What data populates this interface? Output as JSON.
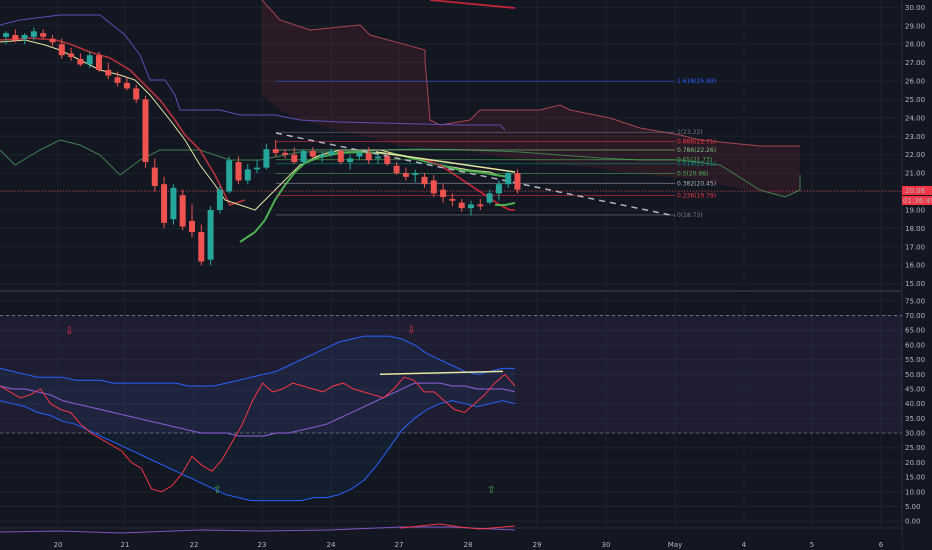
{
  "chart_data": {
    "type": "candlestick",
    "x_ticks": [
      "20",
      "21",
      "22",
      "23",
      "24",
      "27",
      "28",
      "29",
      "30",
      "May",
      "4",
      "5",
      "6"
    ],
    "price_ticks": [
      "15.00",
      "16.00",
      "17.00",
      "18.00",
      "19.00",
      "20.00",
      "21.00",
      "22.00",
      "23.00",
      "24.00",
      "25.00",
      "26.00",
      "27.00",
      "28.00",
      "29.00",
      "30.00"
    ],
    "price_range": [
      14.6,
      30.4
    ],
    "current_price_badge": "20.08",
    "countdown_badge": "01:36:49",
    "candles": [
      {
        "t": 0,
        "o": 28.4,
        "h": 28.7,
        "l": 28.0,
        "c": 28.6
      },
      {
        "t": 1,
        "o": 28.5,
        "h": 28.8,
        "l": 28.1,
        "c": 28.2
      },
      {
        "t": 2,
        "o": 28.3,
        "h": 28.6,
        "l": 28.0,
        "c": 28.5
      },
      {
        "t": 3,
        "o": 28.4,
        "h": 28.9,
        "l": 28.2,
        "c": 28.7
      },
      {
        "t": 4,
        "o": 28.6,
        "h": 28.8,
        "l": 28.3,
        "c": 28.4
      },
      {
        "t": 5,
        "o": 28.3,
        "h": 28.5,
        "l": 27.9,
        "c": 28.1
      },
      {
        "t": 6,
        "o": 28.0,
        "h": 28.3,
        "l": 27.2,
        "c": 27.4
      },
      {
        "t": 7,
        "o": 27.5,
        "h": 27.8,
        "l": 27.1,
        "c": 27.3
      },
      {
        "t": 8,
        "o": 27.2,
        "h": 27.5,
        "l": 26.8,
        "c": 26.9
      },
      {
        "t": 9,
        "o": 26.9,
        "h": 27.6,
        "l": 26.7,
        "c": 27.4
      },
      {
        "t": 10,
        "o": 27.4,
        "h": 27.6,
        "l": 26.5,
        "c": 26.6
      },
      {
        "t": 11,
        "o": 26.6,
        "h": 27.0,
        "l": 26.1,
        "c": 26.3
      },
      {
        "t": 12,
        "o": 26.2,
        "h": 26.5,
        "l": 25.7,
        "c": 25.9
      },
      {
        "t": 13,
        "o": 25.9,
        "h": 26.2,
        "l": 25.5,
        "c": 25.6
      },
      {
        "t": 14,
        "o": 25.6,
        "h": 25.8,
        "l": 24.8,
        "c": 25.0
      },
      {
        "t": 15,
        "o": 25.0,
        "h": 25.2,
        "l": 21.3,
        "c": 21.6
      },
      {
        "t": 16,
        "o": 21.3,
        "h": 21.8,
        "l": 20.0,
        "c": 20.3
      },
      {
        "t": 17,
        "o": 20.4,
        "h": 20.8,
        "l": 18.0,
        "c": 18.3
      },
      {
        "t": 18,
        "o": 18.5,
        "h": 20.4,
        "l": 18.2,
        "c": 20.2
      },
      {
        "t": 19,
        "o": 19.8,
        "h": 20.1,
        "l": 17.9,
        "c": 18.1
      },
      {
        "t": 20,
        "o": 18.4,
        "h": 19.3,
        "l": 17.5,
        "c": 17.8
      },
      {
        "t": 21,
        "o": 17.8,
        "h": 18.2,
        "l": 16.0,
        "c": 16.2
      },
      {
        "t": 22,
        "o": 16.3,
        "h": 19.2,
        "l": 16.0,
        "c": 19.0
      },
      {
        "t": 23,
        "o": 19.0,
        "h": 20.3,
        "l": 18.8,
        "c": 20.1
      },
      {
        "t": 24,
        "o": 20.0,
        "h": 21.9,
        "l": 19.9,
        "c": 21.7
      },
      {
        "t": 25,
        "o": 21.6,
        "h": 21.9,
        "l": 20.4,
        "c": 20.6
      },
      {
        "t": 26,
        "o": 20.6,
        "h": 21.5,
        "l": 20.4,
        "c": 21.2
      },
      {
        "t": 27,
        "o": 21.2,
        "h": 21.7,
        "l": 21.0,
        "c": 21.3
      },
      {
        "t": 28,
        "o": 21.3,
        "h": 22.6,
        "l": 21.2,
        "c": 22.3
      },
      {
        "t": 29,
        "o": 22.3,
        "h": 22.8,
        "l": 21.9,
        "c": 22.1
      },
      {
        "t": 30,
        "o": 22.1,
        "h": 22.3,
        "l": 21.8,
        "c": 22.0
      },
      {
        "t": 31,
        "o": 22.0,
        "h": 22.4,
        "l": 21.5,
        "c": 21.6
      },
      {
        "t": 32,
        "o": 21.6,
        "h": 22.3,
        "l": 21.5,
        "c": 22.2
      },
      {
        "t": 33,
        "o": 22.2,
        "h": 22.4,
        "l": 21.8,
        "c": 21.9
      },
      {
        "t": 34,
        "o": 21.9,
        "h": 22.2,
        "l": 21.6,
        "c": 22.0
      },
      {
        "t": 35,
        "o": 22.0,
        "h": 22.3,
        "l": 21.9,
        "c": 22.2
      },
      {
        "t": 36,
        "o": 22.2,
        "h": 22.3,
        "l": 21.5,
        "c": 21.6
      },
      {
        "t": 37,
        "o": 21.6,
        "h": 22.0,
        "l": 21.2,
        "c": 21.8
      },
      {
        "t": 38,
        "o": 21.9,
        "h": 22.2,
        "l": 21.7,
        "c": 22.1
      },
      {
        "t": 39,
        "o": 22.1,
        "h": 22.4,
        "l": 21.5,
        "c": 21.7
      },
      {
        "t": 40,
        "o": 21.8,
        "h": 22.0,
        "l": 21.5,
        "c": 21.9
      },
      {
        "t": 41,
        "o": 21.9,
        "h": 22.1,
        "l": 21.4,
        "c": 21.5
      },
      {
        "t": 42,
        "o": 21.4,
        "h": 21.6,
        "l": 20.9,
        "c": 21.0
      },
      {
        "t": 43,
        "o": 21.0,
        "h": 21.3,
        "l": 20.6,
        "c": 20.8
      },
      {
        "t": 44,
        "o": 20.9,
        "h": 21.2,
        "l": 20.5,
        "c": 21.0
      },
      {
        "t": 45,
        "o": 20.8,
        "h": 21.0,
        "l": 20.2,
        "c": 20.4
      },
      {
        "t": 46,
        "o": 20.6,
        "h": 20.9,
        "l": 19.7,
        "c": 19.9
      },
      {
        "t": 47,
        "o": 20.1,
        "h": 20.4,
        "l": 19.4,
        "c": 19.7
      },
      {
        "t": 48,
        "o": 19.6,
        "h": 19.9,
        "l": 19.2,
        "c": 19.5
      },
      {
        "t": 49,
        "o": 19.4,
        "h": 19.6,
        "l": 18.9,
        "c": 19.1
      },
      {
        "t": 50,
        "o": 19.1,
        "h": 19.5,
        "l": 18.7,
        "c": 19.3
      },
      {
        "t": 51,
        "o": 19.3,
        "h": 19.6,
        "l": 19.0,
        "c": 19.2
      },
      {
        "t": 52,
        "o": 19.4,
        "h": 20.1,
        "l": 19.3,
        "c": 19.9
      },
      {
        "t": 53,
        "o": 19.9,
        "h": 20.6,
        "l": 19.5,
        "c": 20.4
      },
      {
        "t": 54,
        "o": 20.4,
        "h": 21.1,
        "l": 20.2,
        "c": 21.0
      },
      {
        "t": 55,
        "o": 21.0,
        "h": 21.2,
        "l": 19.9,
        "c": 20.1
      }
    ],
    "fib_levels": [
      {
        "label": "1(23.22)",
        "value": 23.22,
        "color": "#787b86"
      },
      {
        "label": "0.886(22.71)",
        "value": 22.71,
        "color": "#f23645"
      },
      {
        "label": "0.786(22.26)",
        "value": 22.26,
        "color": "#81c784"
      },
      {
        "label": "0.65(21.73)",
        "value": 21.73,
        "color": "#4caf50"
      },
      {
        "label": "0.618(21.51)",
        "value": 21.51,
        "color": "#089981"
      },
      {
        "label": "0.5(20.98)",
        "value": 20.98,
        "color": "#4caf50"
      },
      {
        "label": "0.382(20.45)",
        "value": 20.45,
        "color": "#b2b5be"
      },
      {
        "label": "0.236(19.79)",
        "value": 19.79,
        "color": "#f23645"
      },
      {
        "label": "0(18.73)",
        "value": 18.73,
        "color": "#787b86"
      },
      {
        "label": "1.618(25.99)",
        "value": 25.99,
        "color": "#2962ff"
      }
    ],
    "osc_ticks": [
      "0.00",
      "5.00",
      "10.00",
      "15.00",
      "20.00",
      "25.00",
      "30.00",
      "35.00",
      "40.00",
      "45.00",
      "50.00",
      "55.00",
      "60.00",
      "65.00",
      "70.00",
      "75.00"
    ],
    "osc_range": [
      -2,
      77
    ],
    "osc_upper_band": 70,
    "osc_lower_band": 30,
    "rsi": [
      46,
      44,
      42,
      43,
      45,
      40,
      38,
      37,
      33,
      30,
      28,
      26,
      24,
      20,
      18,
      11,
      10,
      12,
      16,
      22,
      19,
      17,
      21,
      27,
      33,
      41,
      47,
      44,
      45,
      47,
      46,
      45,
      44,
      46,
      47,
      45,
      44,
      43,
      42,
      45,
      49,
      48,
      44,
      44,
      41,
      38,
      37,
      40,
      43,
      47,
      50,
      46
    ],
    "bb_upper": [
      52,
      51,
      50,
      49,
      49,
      49,
      48,
      48,
      48,
      47,
      47,
      47,
      47,
      47,
      47,
      46,
      46,
      46,
      47,
      48,
      49,
      50,
      51,
      53,
      55,
      57,
      59,
      61,
      62,
      63,
      63,
      63,
      62,
      60,
      57,
      55,
      53,
      51,
      50,
      51,
      52,
      52
    ],
    "bb_lower": [
      41,
      40,
      39,
      37,
      36,
      34,
      33,
      31,
      29,
      27,
      25,
      23,
      21,
      19,
      17,
      15,
      13,
      11,
      9,
      8,
      7,
      7,
      7,
      7,
      7,
      8,
      8,
      9,
      11,
      14,
      19,
      25,
      31,
      35,
      38,
      40,
      41,
      40,
      39,
      40,
      41,
      40
    ],
    "bb_basis": [
      46,
      45,
      45,
      44,
      43,
      41,
      40,
      39,
      38,
      37,
      36,
      35,
      34,
      33,
      32,
      31,
      30,
      30,
      30,
      29,
      29,
      29,
      30,
      30,
      31,
      32,
      33,
      35,
      37,
      39,
      41,
      43,
      45,
      47,
      47,
      47,
      46,
      46,
      45,
      45,
      45,
      44
    ]
  }
}
